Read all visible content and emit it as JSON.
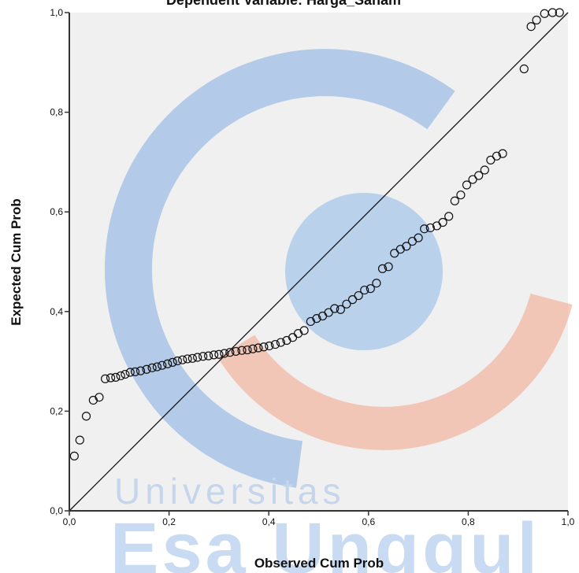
{
  "chart_data": {
    "type": "scatter",
    "title": "Dependent Variable: Harga_Saham",
    "xlabel": "Observed Cum Prob",
    "ylabel": "Expected Cum Prob",
    "xlim": [
      0,
      1
    ],
    "ylim": [
      0,
      1
    ],
    "x_ticks": [
      "0,0",
      "0,2",
      "0,4",
      "0,6",
      "0,8",
      "1,0"
    ],
    "y_ticks": [
      "0,0",
      "0,2",
      "0,4",
      "0,6",
      "0,8",
      "1,0"
    ],
    "grid": false,
    "legend": "none",
    "reference_line": [
      [
        0,
        0
      ],
      [
        1,
        1
      ]
    ],
    "points": [
      [
        0.01,
        0.11
      ],
      [
        0.021,
        0.142
      ],
      [
        0.034,
        0.19
      ],
      [
        0.048,
        0.222
      ],
      [
        0.06,
        0.228
      ],
      [
        0.072,
        0.265
      ],
      [
        0.083,
        0.267
      ],
      [
        0.093,
        0.268
      ],
      [
        0.103,
        0.271
      ],
      [
        0.112,
        0.274
      ],
      [
        0.122,
        0.278
      ],
      [
        0.132,
        0.279
      ],
      [
        0.143,
        0.281
      ],
      [
        0.155,
        0.284
      ],
      [
        0.166,
        0.287
      ],
      [
        0.176,
        0.289
      ],
      [
        0.186,
        0.292
      ],
      [
        0.197,
        0.295
      ],
      [
        0.207,
        0.298
      ],
      [
        0.217,
        0.301
      ],
      [
        0.227,
        0.303
      ],
      [
        0.237,
        0.305
      ],
      [
        0.247,
        0.306
      ],
      [
        0.257,
        0.308
      ],
      [
        0.268,
        0.31
      ],
      [
        0.279,
        0.311
      ],
      [
        0.29,
        0.313
      ],
      [
        0.3,
        0.314
      ],
      [
        0.311,
        0.316
      ],
      [
        0.322,
        0.318
      ],
      [
        0.334,
        0.32
      ],
      [
        0.346,
        0.322
      ],
      [
        0.357,
        0.323
      ],
      [
        0.368,
        0.325
      ],
      [
        0.379,
        0.327
      ],
      [
        0.39,
        0.329
      ],
      [
        0.401,
        0.331
      ],
      [
        0.413,
        0.334
      ],
      [
        0.424,
        0.338
      ],
      [
        0.436,
        0.342
      ],
      [
        0.448,
        0.348
      ],
      [
        0.459,
        0.356
      ],
      [
        0.471,
        0.362
      ],
      [
        0.484,
        0.38
      ],
      [
        0.496,
        0.386
      ],
      [
        0.508,
        0.391
      ],
      [
        0.52,
        0.398
      ],
      [
        0.532,
        0.406
      ],
      [
        0.544,
        0.404
      ],
      [
        0.556,
        0.415
      ],
      [
        0.568,
        0.424
      ],
      [
        0.58,
        0.432
      ],
      [
        0.592,
        0.443
      ],
      [
        0.604,
        0.446
      ],
      [
        0.616,
        0.457
      ],
      [
        0.628,
        0.486
      ],
      [
        0.64,
        0.49
      ],
      [
        0.652,
        0.517
      ],
      [
        0.664,
        0.525
      ],
      [
        0.676,
        0.531
      ],
      [
        0.688,
        0.541
      ],
      [
        0.7,
        0.548
      ],
      [
        0.712,
        0.566
      ],
      [
        0.724,
        0.568
      ],
      [
        0.737,
        0.572
      ],
      [
        0.749,
        0.579
      ],
      [
        0.761,
        0.591
      ],
      [
        0.773,
        0.622
      ],
      [
        0.785,
        0.634
      ],
      [
        0.797,
        0.654
      ],
      [
        0.809,
        0.665
      ],
      [
        0.821,
        0.673
      ],
      [
        0.833,
        0.684
      ],
      [
        0.845,
        0.704
      ],
      [
        0.857,
        0.712
      ],
      [
        0.869,
        0.717
      ],
      [
        0.912,
        0.887
      ],
      [
        0.926,
        0.972
      ],
      [
        0.937,
        0.985
      ],
      [
        0.953,
        0.998
      ],
      [
        0.969,
        1.0
      ],
      [
        0.983,
        1.0
      ]
    ]
  },
  "watermark": {
    "line1": "Universitas",
    "line2": "Esa Unggul",
    "colors": {
      "blue": "#9fbfe6",
      "salmon": "#f2b9a4",
      "text": "#8fb4e0"
    }
  },
  "colors": {
    "plot_bg": "#f0f0f0",
    "marker_stroke": "#111111",
    "line": "#111111"
  }
}
